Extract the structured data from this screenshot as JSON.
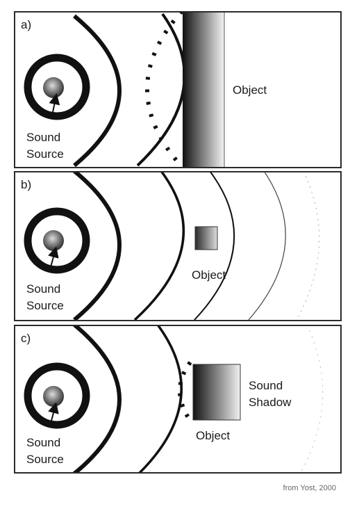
{
  "panels": [
    {
      "label": "a)",
      "source_line1": "Sound",
      "source_line2": "Source",
      "object_label": "Object"
    },
    {
      "label": "b)",
      "source_line1": "Sound",
      "source_line2": "Source",
      "object_label": "Object"
    },
    {
      "label": "c)",
      "source_line1": "Sound",
      "source_line2": "Source",
      "object_label": "Object",
      "shadow_line1": "Sound",
      "shadow_line2": "Shadow"
    }
  ],
  "credit": "from Yost, 2000"
}
